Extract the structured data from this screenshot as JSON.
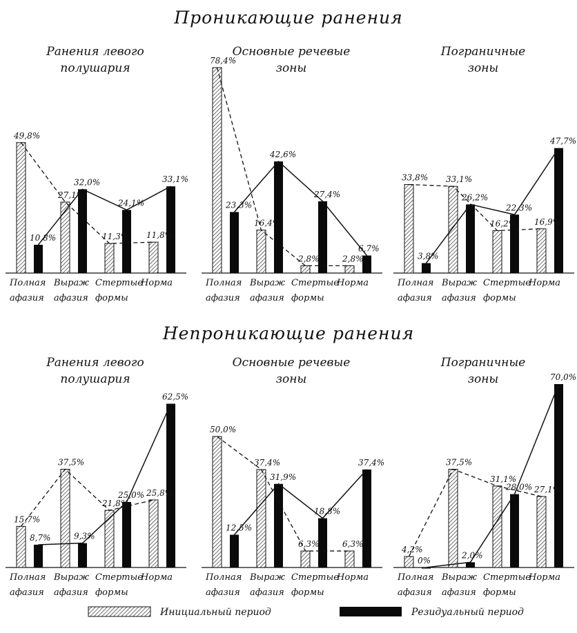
{
  "sections": [
    {
      "title": "Проникающие ранения",
      "panels": [
        {
          "title_lines": [
            "Ранения левого",
            "полушария"
          ]
        },
        {
          "title_lines": [
            "Основные речевые",
            "зоны"
          ]
        },
        {
          "title_lines": [
            "Пограничные",
            "зоны"
          ]
        }
      ]
    },
    {
      "title": "Непроникающие ранения",
      "panels": [
        {
          "title_lines": [
            "Ранения левого",
            "полушария"
          ]
        },
        {
          "title_lines": [
            "Основные речевые",
            "зоны"
          ]
        },
        {
          "title_lines": [
            "Пограничные",
            "зоны"
          ]
        }
      ]
    }
  ],
  "category_labels": [
    [
      "Полная",
      "афазия"
    ],
    [
      "Выраж",
      "афазия"
    ],
    [
      "Стертые",
      "формы"
    ],
    [
      "Норма",
      ""
    ]
  ],
  "legend": {
    "initial": "Инициальный период",
    "residual": "Резидуальный период"
  },
  "colors": {
    "initial_fill": "#ffffff",
    "initial_hatch": "#222222",
    "residual_fill": "#0a0a0a",
    "line": "#111111"
  },
  "chart_data": [
    {
      "type": "bar",
      "section": "Проникающие ранения",
      "title": "Ранения левого полушария",
      "categories": [
        "Полная афазия",
        "Выраж афазия",
        "Стертые формы",
        "Норма"
      ],
      "series": [
        {
          "name": "Инициальный период",
          "values": [
            49.8,
            27.1,
            11.3,
            11.8
          ],
          "labels": [
            "49,8%",
            "27,1%",
            "11,3%",
            "11,8%"
          ]
        },
        {
          "name": "Резидуальный период",
          "values": [
            10.8,
            32.0,
            24.1,
            33.1
          ],
          "labels": [
            "10,8%",
            "32,0%",
            "24,1%",
            "33,1%"
          ]
        }
      ]
    },
    {
      "type": "bar",
      "section": "Проникающие ранения",
      "title": "Основные речевые зоны",
      "categories": [
        "Полная афазия",
        "Выраж афазия",
        "Стертые формы",
        "Норма"
      ],
      "series": [
        {
          "name": "Инициальный период",
          "values": [
            78.4,
            16.4,
            2.8,
            2.8
          ],
          "labels": [
            "78,4%",
            "16,4%",
            "2,8%",
            "2,8%"
          ]
        },
        {
          "name": "Резидуальный период",
          "values": [
            23.3,
            42.6,
            27.4,
            6.7
          ],
          "labels": [
            "23,3%",
            "42,6%",
            "27,4%",
            "6,7%"
          ]
        }
      ]
    },
    {
      "type": "bar",
      "section": "Проникающие ранения",
      "title": "Пограничные зоны",
      "categories": [
        "Полная афазия",
        "Выраж афазия",
        "Стертые формы",
        "Норма"
      ],
      "series": [
        {
          "name": "Инициальный период",
          "values": [
            33.8,
            33.1,
            16.2,
            16.9
          ],
          "labels": [
            "33,8%",
            "33,1%",
            "16,2%",
            "16,9%"
          ]
        },
        {
          "name": "Резидуальный период",
          "values": [
            3.8,
            26.2,
            22.3,
            47.7
          ],
          "labels": [
            "3,8%",
            "26,2%",
            "22,3%",
            "47,7%"
          ]
        }
      ]
    },
    {
      "type": "bar",
      "section": "Непроникающие ранения",
      "title": "Ранения левого полушария",
      "categories": [
        "Полная афазия",
        "Выраж афазия",
        "Стертые формы",
        "Норма"
      ],
      "series": [
        {
          "name": "Инициальный период",
          "values": [
            15.7,
            37.5,
            21.8,
            25.8
          ],
          "labels": [
            "15,7%",
            "37,5%",
            "21,8%",
            "25,8%"
          ]
        },
        {
          "name": "Резидуальный период",
          "values": [
            8.7,
            9.3,
            25.0,
            62.5
          ],
          "labels": [
            "8,7%",
            "9,3%",
            "25,0%",
            "62,5%"
          ]
        }
      ]
    },
    {
      "type": "bar",
      "section": "Непроникающие ранения",
      "title": "Основные речевые зоны",
      "categories": [
        "Полная афазия",
        "Выраж афазия",
        "Стертые формы",
        "Норма"
      ],
      "series": [
        {
          "name": "Инициальный период",
          "values": [
            50.0,
            37.4,
            6.3,
            6.3
          ],
          "labels": [
            "50,0%",
            "37,4%",
            "6,3%",
            "6,3%"
          ]
        },
        {
          "name": "Резидуальный период",
          "values": [
            12.5,
            31.9,
            18.8,
            37.4
          ],
          "labels": [
            "12,5%",
            "31,9%",
            "18,8%",
            "37,4%"
          ]
        }
      ]
    },
    {
      "type": "bar",
      "section": "Непроникающие ранения",
      "title": "Пограничные зоны",
      "categories": [
        "Полная афазия",
        "Выраж афазия",
        "Стертые формы",
        "Норма"
      ],
      "series": [
        {
          "name": "Инициальный период",
          "values": [
            4.2,
            37.5,
            31.1,
            27.1
          ],
          "labels": [
            "4,2%",
            "37,5%",
            "31,1%",
            "27,1%"
          ]
        },
        {
          "name": "Резидуальный период",
          "values": [
            0.0,
            2.0,
            28.0,
            70.0
          ],
          "labels": [
            "0%",
            "2,0%",
            "28,0%",
            "70,0%"
          ]
        }
      ]
    }
  ]
}
